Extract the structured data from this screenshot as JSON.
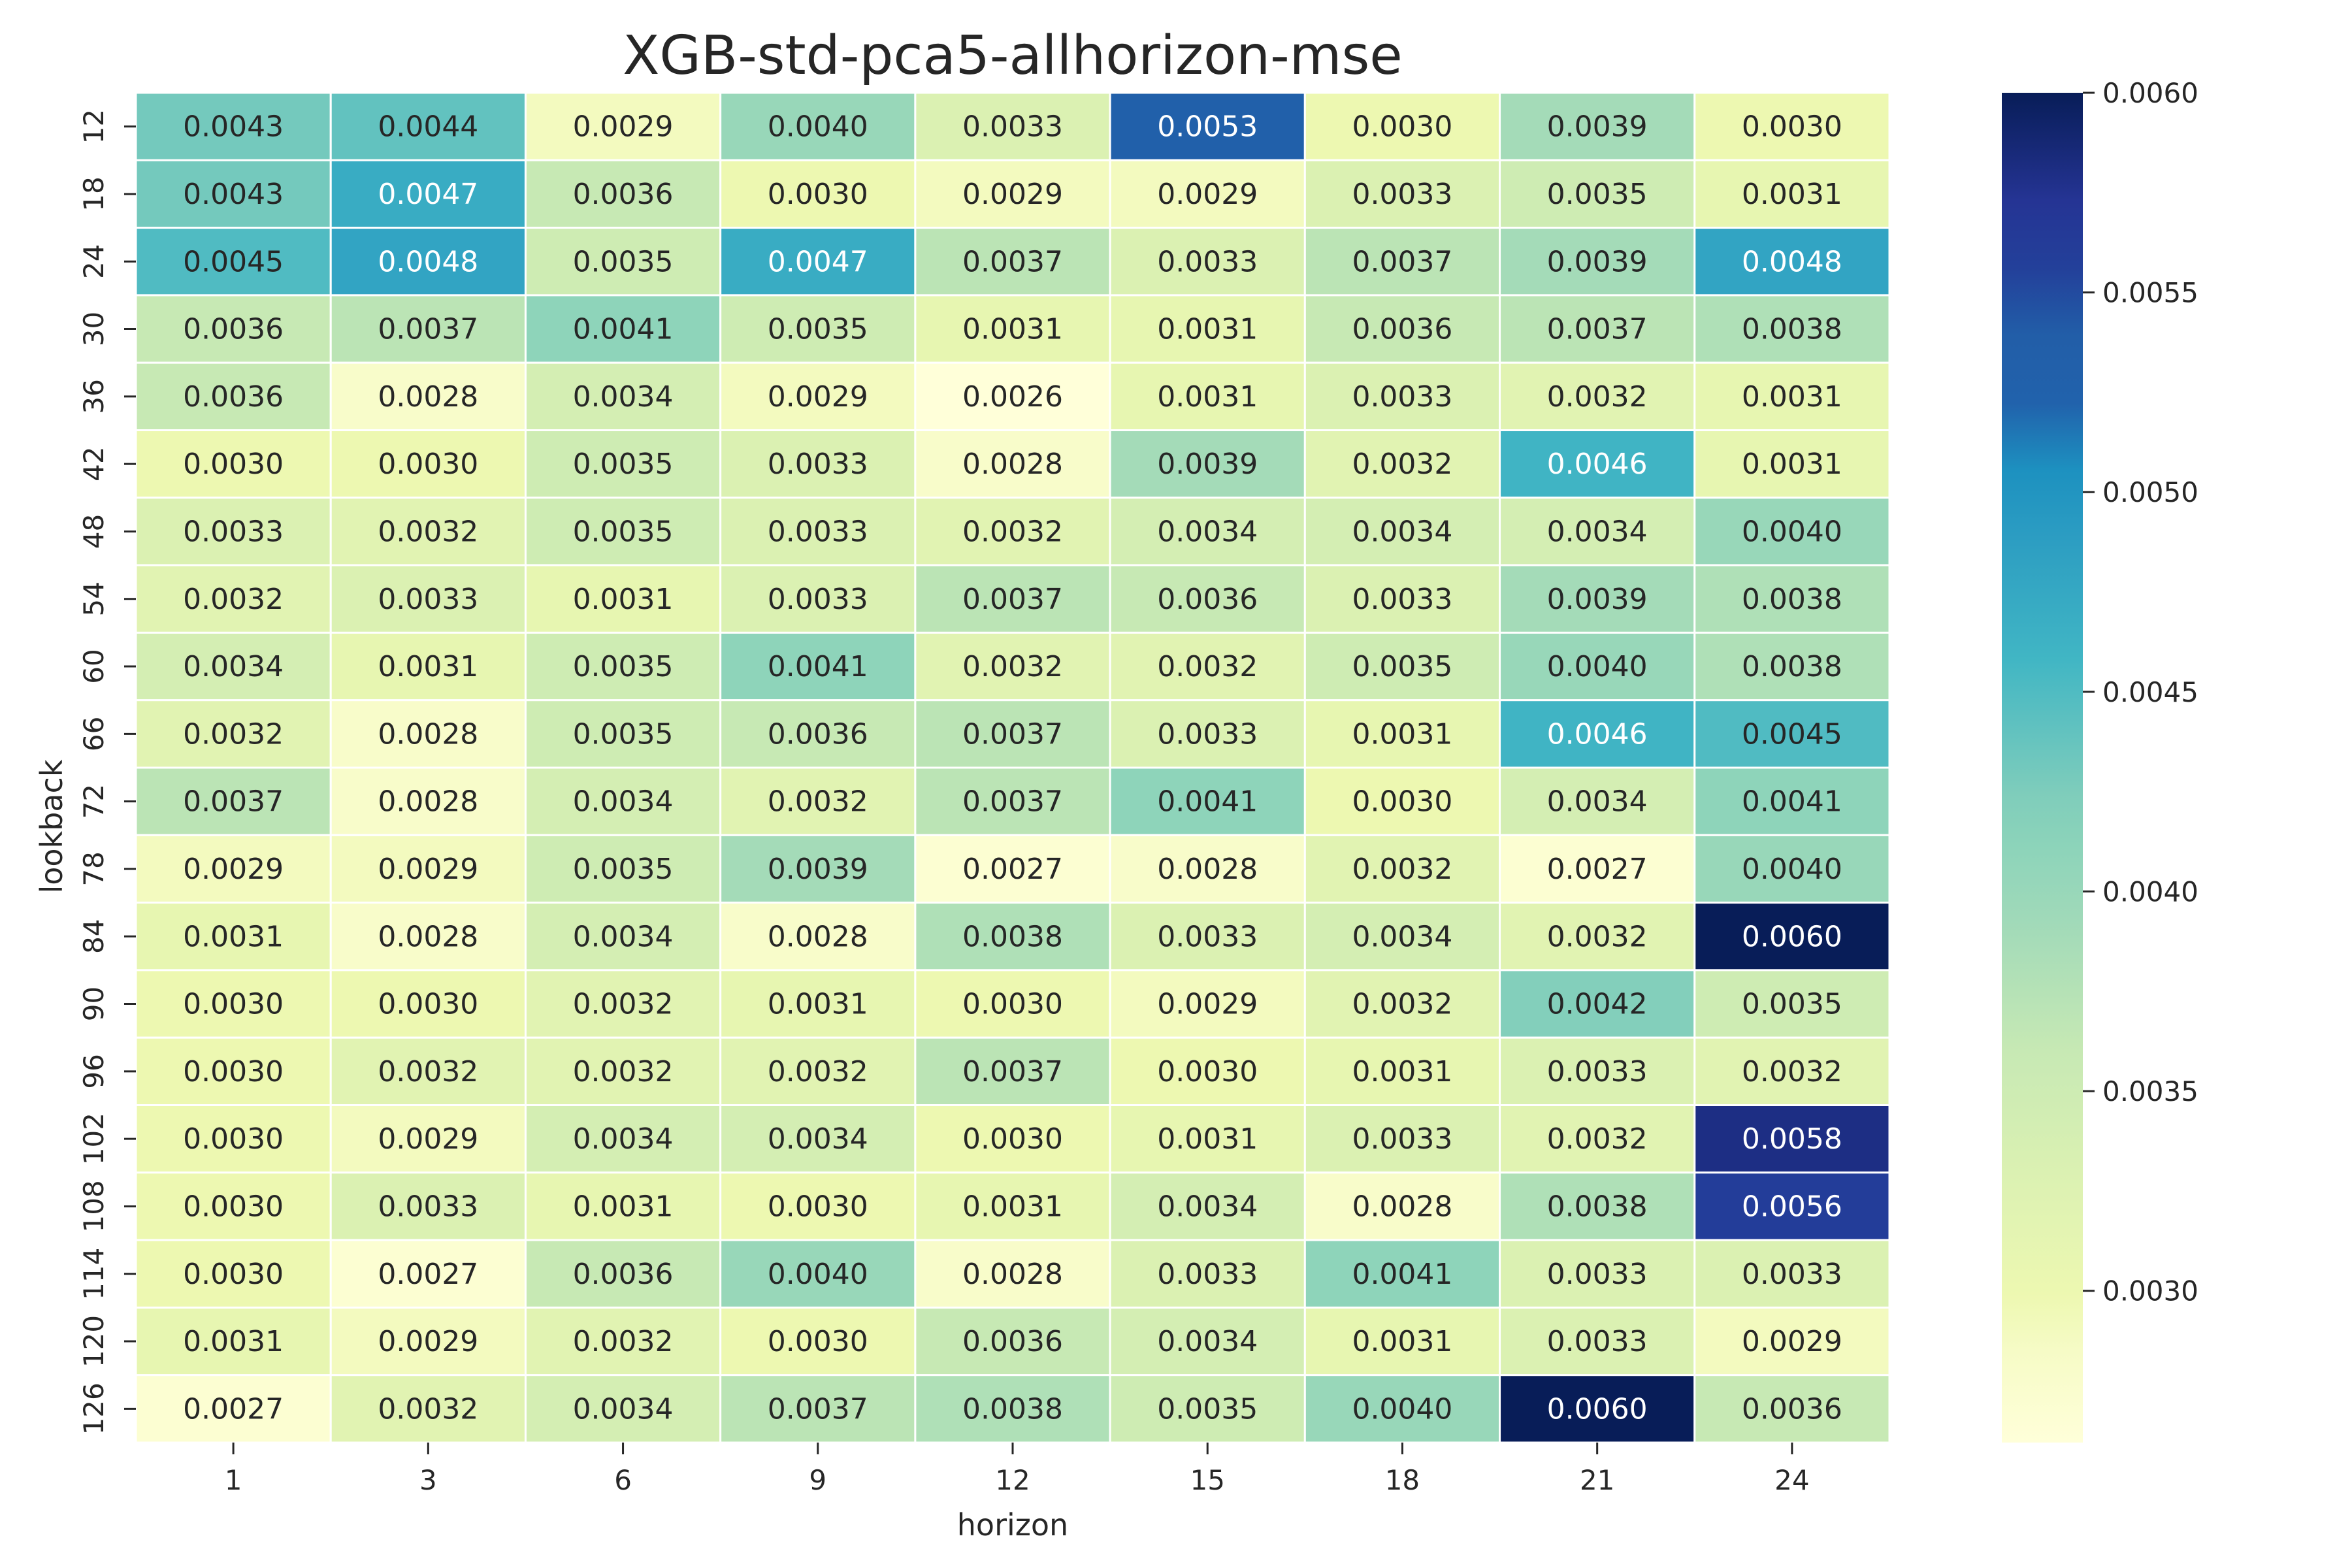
{
  "chart_data": {
    "type": "heatmap",
    "title": "XGB-std-pca5-allhorizon-mse",
    "xlabel": "horizon",
    "ylabel": "lookback",
    "x": [
      "1",
      "3",
      "6",
      "9",
      "12",
      "15",
      "18",
      "21",
      "24"
    ],
    "y": [
      "12",
      "18",
      "24",
      "30",
      "36",
      "42",
      "48",
      "54",
      "60",
      "66",
      "72",
      "78",
      "84",
      "90",
      "96",
      "102",
      "108",
      "114",
      "120",
      "126"
    ],
    "values": [
      [
        0.0043,
        0.0044,
        0.0029,
        0.004,
        0.0033,
        0.0053,
        0.003,
        0.0039,
        0.003
      ],
      [
        0.0043,
        0.0047,
        0.0036,
        0.003,
        0.0029,
        0.0029,
        0.0033,
        0.0035,
        0.0031
      ],
      [
        0.0045,
        0.0048,
        0.0035,
        0.0047,
        0.0037,
        0.0033,
        0.0037,
        0.0039,
        0.0048
      ],
      [
        0.0036,
        0.0037,
        0.0041,
        0.0035,
        0.0031,
        0.0031,
        0.0036,
        0.0037,
        0.0038
      ],
      [
        0.0036,
        0.0028,
        0.0034,
        0.0029,
        0.0026,
        0.0031,
        0.0033,
        0.0032,
        0.0031
      ],
      [
        0.003,
        0.003,
        0.0035,
        0.0033,
        0.0028,
        0.0039,
        0.0032,
        0.0046,
        0.0031
      ],
      [
        0.0033,
        0.0032,
        0.0035,
        0.0033,
        0.0032,
        0.0034,
        0.0034,
        0.0034,
        0.004
      ],
      [
        0.0032,
        0.0033,
        0.0031,
        0.0033,
        0.0037,
        0.0036,
        0.0033,
        0.0039,
        0.0038
      ],
      [
        0.0034,
        0.0031,
        0.0035,
        0.0041,
        0.0032,
        0.0032,
        0.0035,
        0.004,
        0.0038
      ],
      [
        0.0032,
        0.0028,
        0.0035,
        0.0036,
        0.0037,
        0.0033,
        0.0031,
        0.0046,
        0.0045
      ],
      [
        0.0037,
        0.0028,
        0.0034,
        0.0032,
        0.0037,
        0.0041,
        0.003,
        0.0034,
        0.0041
      ],
      [
        0.0029,
        0.0029,
        0.0035,
        0.0039,
        0.0027,
        0.0028,
        0.0032,
        0.0027,
        0.004
      ],
      [
        0.0031,
        0.0028,
        0.0034,
        0.0028,
        0.0038,
        0.0033,
        0.0034,
        0.0032,
        0.006
      ],
      [
        0.003,
        0.003,
        0.0032,
        0.0031,
        0.003,
        0.0029,
        0.0032,
        0.0042,
        0.0035
      ],
      [
        0.003,
        0.0032,
        0.0032,
        0.0032,
        0.0037,
        0.003,
        0.0031,
        0.0033,
        0.0032
      ],
      [
        0.003,
        0.0029,
        0.0034,
        0.0034,
        0.003,
        0.0031,
        0.0033,
        0.0032,
        0.0058
      ],
      [
        0.003,
        0.0033,
        0.0031,
        0.003,
        0.0031,
        0.0034,
        0.0028,
        0.0038,
        0.0056
      ],
      [
        0.003,
        0.0027,
        0.0036,
        0.004,
        0.0028,
        0.0033,
        0.0041,
        0.0033,
        0.0033
      ],
      [
        0.0031,
        0.0029,
        0.0032,
        0.003,
        0.0036,
        0.0034,
        0.0031,
        0.0033,
        0.0029
      ],
      [
        0.0027,
        0.0032,
        0.0034,
        0.0037,
        0.0038,
        0.0035,
        0.004,
        0.006,
        0.0036
      ]
    ],
    "colormap": "YlGnBu",
    "color_range": [
      0.00262,
      0.006
    ],
    "colorbar_ticks": [
      "0.0030",
      "0.0035",
      "0.0040",
      "0.0045",
      "0.0050",
      "0.0055",
      "0.0060"
    ],
    "colorbar_tick_values": [
      0.003,
      0.0035,
      0.004,
      0.0045,
      0.005,
      0.0055,
      0.006
    ],
    "annotation_format": "4 decimals",
    "grid": false
  }
}
